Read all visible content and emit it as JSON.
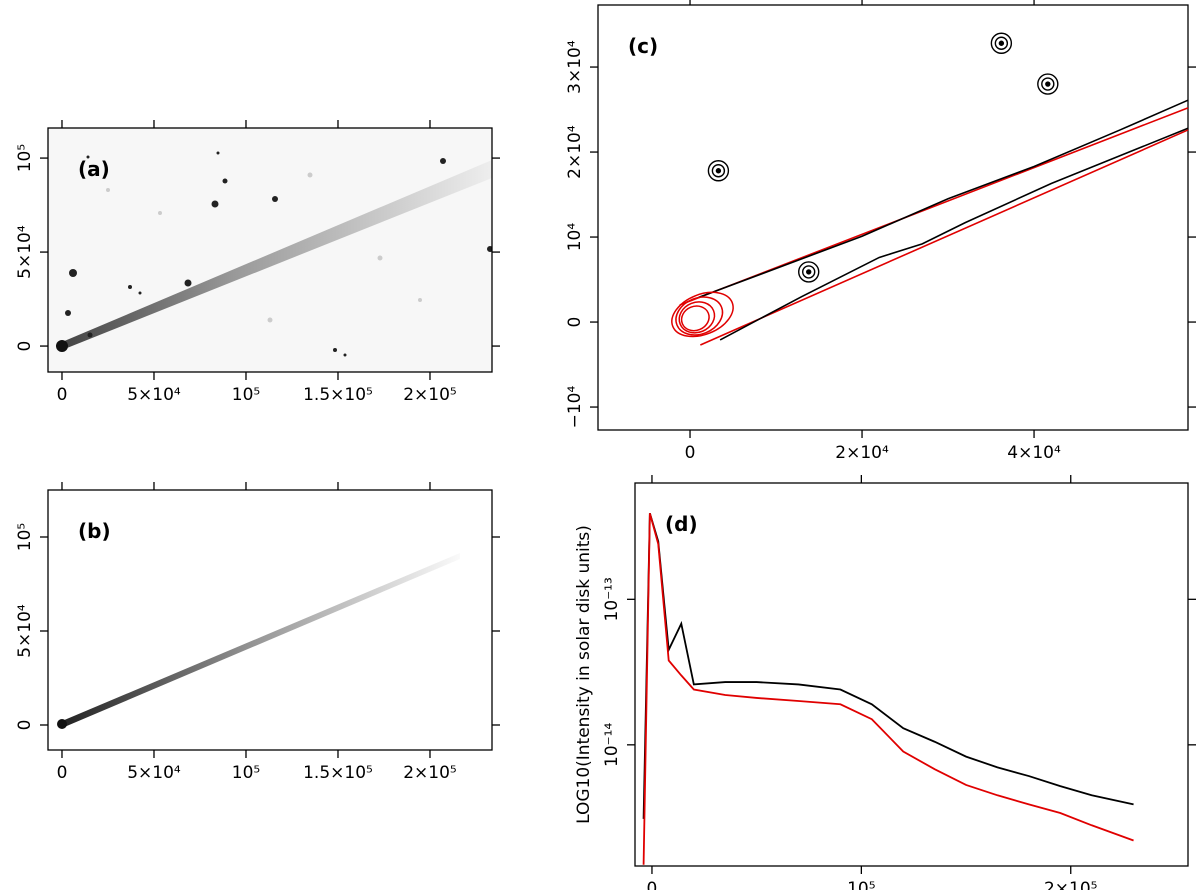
{
  "chart_data": [
    {
      "type": "image",
      "label": "(a)",
      "xlim": [
        -7600,
        233700
      ],
      "ylim": [
        -13800,
        116000
      ],
      "xticks": [
        0,
        {
          "value": 50000,
          "label": "5×10⁴"
        },
        {
          "value": 100000,
          "label": "10⁵"
        },
        {
          "value": 150000,
          "label": "1.5×10⁵"
        },
        {
          "value": 200000,
          "label": "2×10⁵"
        }
      ],
      "yticks": [
        0,
        {
          "value": 50000,
          "label": "5×10⁴"
        },
        {
          "value": 100000,
          "label": "10⁵"
        }
      ]
    },
    {
      "type": "image",
      "label": "(b)",
      "xlim": [
        -7600,
        233700
      ],
      "ylim": [
        -13300,
        125000
      ],
      "xticks": [
        0,
        {
          "value": 50000,
          "label": "5×10⁴"
        },
        {
          "value": 100000,
          "label": "10⁵"
        },
        {
          "value": 150000,
          "label": "1.5×10⁵"
        },
        {
          "value": 200000,
          "label": "2×10⁵"
        }
      ],
      "yticks": [
        0,
        {
          "value": 50000,
          "label": "5×10⁴"
        },
        {
          "value": 100000,
          "label": "10⁵"
        }
      ]
    },
    {
      "type": "contour",
      "label": "(c)",
      "xlim": [
        -10700,
        57900
      ],
      "ylim": [
        -12700,
        37300
      ],
      "xticks": [
        0,
        {
          "value": 20000,
          "label": "2×10⁴"
        },
        {
          "value": 40000,
          "label": "4×10⁴"
        }
      ],
      "yticks": [
        {
          "value": -10000,
          "label": "−10⁴"
        },
        0,
        {
          "value": 10000,
          "label": "10⁴"
        },
        {
          "value": 20000,
          "label": "2×10⁴"
        },
        {
          "value": 30000,
          "label": "3×10⁴"
        }
      ],
      "series": [
        {
          "color": "#e00000",
          "x": [
            -1200,
            57900
          ],
          "y": [
            2000,
            25200
          ]
        },
        {
          "color": "#e00000",
          "x": [
            1200,
            57900
          ],
          "y": [
            -2700,
            22600
          ]
        },
        {
          "color": "#000000",
          "x": [
            1000,
            10000,
            20000,
            30000,
            40000,
            50000,
            57900
          ],
          "y": [
            2900,
            6300,
            10100,
            14500,
            18300,
            22600,
            26100
          ]
        },
        {
          "color": "#000000",
          "x": [
            3500,
            13000,
            22000,
            27000,
            32000,
            42000,
            57900
          ],
          "y": [
            -2100,
            3000,
            7600,
            9200,
            11700,
            16300,
            22800
          ]
        }
      ],
      "nucleus": {
        "color": "#e00000",
        "x": 0,
        "y": 0
      },
      "sources": {
        "color": "#000000",
        "x": [
          3300,
          13800,
          36200,
          41600
        ],
        "y": [
          17800,
          5900,
          32800,
          28000
        ]
      }
    },
    {
      "type": "line",
      "label": "(d)",
      "ylabel": "LOG10(Intensity in solar disk units)",
      "log_y": true,
      "xlim": [
        -8100,
        256000
      ],
      "ylim": [
        1.47e-15,
        6.3e-13
      ],
      "xticks": [
        0,
        {
          "value": 100000,
          "label": "10⁵"
        },
        {
          "value": 200000,
          "label": "2×10⁵"
        }
      ],
      "yticks": [
        {
          "value": 1e-14,
          "label": "10⁻¹⁴"
        },
        {
          "value": 1e-13,
          "label": "10⁻¹³"
        }
      ],
      "x": [
        -4000,
        -1000,
        3000,
        8000,
        14000,
        20000,
        35000,
        50000,
        70000,
        90000,
        105000,
        120000,
        135000,
        150000,
        165000,
        180000,
        195000,
        210000,
        230000
      ],
      "series": [
        {
          "color": "#000000",
          "values": [
            3.1e-15,
            3.9e-13,
            2.5e-13,
            4.5e-14,
            6.8e-14,
            2.6e-14,
            2.7e-14,
            2.7e-14,
            2.6e-14,
            2.4e-14,
            1.9e-14,
            1.3e-14,
            1.05e-14,
            8.3e-15,
            7e-15,
            6.1e-15,
            5.2e-15,
            4.5e-15,
            3.9e-15
          ]
        },
        {
          "color": "#e00000",
          "values": [
            1.5e-15,
            3.9e-13,
            2.4e-13,
            3.8e-14,
            3e-14,
            2.4e-14,
            2.2e-14,
            2.1e-14,
            2e-14,
            1.9e-14,
            1.5e-14,
            9e-15,
            6.8e-15,
            5.3e-15,
            4.5e-15,
            3.9e-15,
            3.4e-15,
            2.8e-15,
            2.2e-15
          ]
        }
      ]
    }
  ]
}
